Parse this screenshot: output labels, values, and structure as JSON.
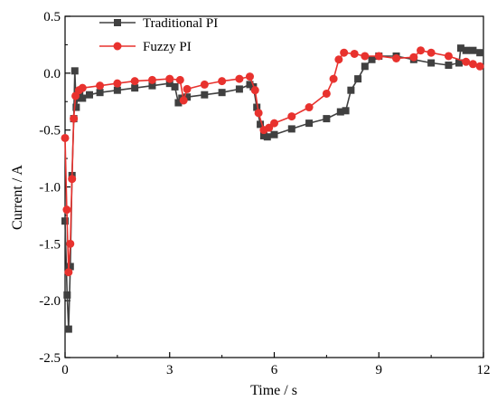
{
  "colors": {
    "axis": "#000000",
    "background": "#ffffff"
  },
  "chart_data": {
    "type": "line",
    "xlabel": "Time / s",
    "ylabel": "Current / A",
    "xlim": [
      0,
      12
    ],
    "ylim": [
      -2.5,
      0.5
    ],
    "xticks": [
      0,
      3,
      6,
      9,
      12
    ],
    "yticks": [
      -2.5,
      -2.0,
      -1.5,
      -1.0,
      -0.5,
      0.0,
      0.5
    ],
    "xtick_labels": [
      "0",
      "3",
      "6",
      "9",
      "12"
    ],
    "ytick_labels": [
      "-2.5",
      "-2.0",
      "-1.5",
      "-1.0",
      "-0.5",
      "0.0",
      "0.5"
    ],
    "grid": false,
    "legend_position": "top-left",
    "series": [
      {
        "name": "Traditional PI",
        "color": "#404040",
        "marker": "square",
        "x": [
          0.0,
          0.06,
          0.1,
          0.15,
          0.2,
          0.25,
          0.28,
          0.32,
          0.36,
          0.42,
          0.5,
          0.7,
          1.0,
          1.5,
          2.0,
          2.5,
          3.0,
          3.15,
          3.25,
          3.35,
          3.5,
          4.0,
          4.5,
          5.0,
          5.3,
          5.4,
          5.5,
          5.6,
          5.7,
          5.8,
          6.0,
          6.5,
          7.0,
          7.5,
          7.9,
          8.05,
          8.2,
          8.4,
          8.6,
          8.8,
          9.0,
          9.5,
          10.0,
          10.5,
          11.0,
          11.3,
          11.35,
          11.5,
          11.7,
          11.9
        ],
        "y": [
          -1.3,
          -1.95,
          -2.25,
          -1.7,
          -0.9,
          -0.4,
          0.02,
          -0.3,
          -0.22,
          -0.19,
          -0.22,
          -0.19,
          -0.17,
          -0.15,
          -0.13,
          -0.11,
          -0.09,
          -0.12,
          -0.26,
          -0.22,
          -0.21,
          -0.19,
          -0.17,
          -0.14,
          -0.1,
          -0.12,
          -0.3,
          -0.45,
          -0.55,
          -0.56,
          -0.54,
          -0.49,
          -0.44,
          -0.4,
          -0.34,
          -0.33,
          -0.15,
          -0.05,
          0.06,
          0.12,
          0.15,
          0.15,
          0.12,
          0.09,
          0.07,
          0.09,
          0.22,
          0.2,
          0.2,
          0.18
        ]
      },
      {
        "name": "Fuzzy PI",
        "color": "#e8322e",
        "marker": "circle",
        "x": [
          0.0,
          0.05,
          0.1,
          0.15,
          0.2,
          0.25,
          0.3,
          0.4,
          0.5,
          1.0,
          1.5,
          2.0,
          2.5,
          3.0,
          3.3,
          3.4,
          3.5,
          4.0,
          4.5,
          5.0,
          5.3,
          5.45,
          5.55,
          5.7,
          5.85,
          6.0,
          6.5,
          7.0,
          7.5,
          7.7,
          7.85,
          8.0,
          8.3,
          8.6,
          9.0,
          9.5,
          10.0,
          10.2,
          10.5,
          11.0,
          11.5,
          11.7,
          11.9
        ],
        "y": [
          -0.57,
          -1.2,
          -1.75,
          -1.5,
          -0.93,
          -0.4,
          -0.2,
          -0.15,
          -0.13,
          -0.11,
          -0.09,
          -0.07,
          -0.06,
          -0.05,
          -0.06,
          -0.24,
          -0.14,
          -0.1,
          -0.07,
          -0.05,
          -0.03,
          -0.15,
          -0.35,
          -0.5,
          -0.48,
          -0.44,
          -0.38,
          -0.3,
          -0.18,
          -0.05,
          0.12,
          0.18,
          0.17,
          0.15,
          0.15,
          0.13,
          0.14,
          0.2,
          0.18,
          0.15,
          0.1,
          0.08,
          0.06
        ]
      }
    ]
  }
}
